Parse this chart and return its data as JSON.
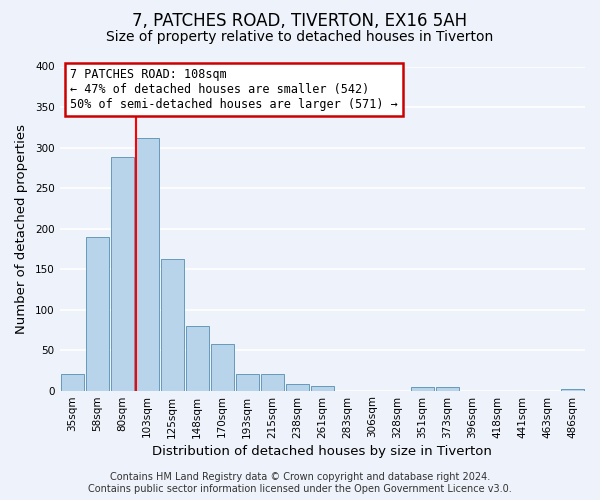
{
  "title": "7, PATCHES ROAD, TIVERTON, EX16 5AH",
  "subtitle": "Size of property relative to detached houses in Tiverton",
  "xlabel": "Distribution of detached houses by size in Tiverton",
  "ylabel": "Number of detached properties",
  "categories": [
    "35sqm",
    "58sqm",
    "80sqm",
    "103sqm",
    "125sqm",
    "148sqm",
    "170sqm",
    "193sqm",
    "215sqm",
    "238sqm",
    "261sqm",
    "283sqm",
    "306sqm",
    "328sqm",
    "351sqm",
    "373sqm",
    "396sqm",
    "418sqm",
    "441sqm",
    "463sqm",
    "486sqm"
  ],
  "values": [
    20,
    190,
    288,
    312,
    162,
    80,
    58,
    20,
    20,
    8,
    6,
    0,
    0,
    0,
    4,
    4,
    0,
    0,
    0,
    0,
    2
  ],
  "bar_color": "#b8d4ea",
  "bar_edge_color": "#6699bb",
  "red_line_index": 3,
  "ylim": [
    0,
    400
  ],
  "yticks": [
    0,
    50,
    100,
    150,
    200,
    250,
    300,
    350,
    400
  ],
  "annotation_box_text": "7 PATCHES ROAD: 108sqm\n← 47% of detached houses are smaller (542)\n50% of semi-detached houses are larger (571) →",
  "annotation_box_color": "#ffffff",
  "annotation_box_edge_color": "#cc0000",
  "footer_line1": "Contains HM Land Registry data © Crown copyright and database right 2024.",
  "footer_line2": "Contains public sector information licensed under the Open Government Licence v3.0.",
  "background_color": "#eef2fa",
  "title_fontsize": 12,
  "subtitle_fontsize": 10,
  "axis_label_fontsize": 9.5,
  "tick_fontsize": 7.5,
  "footer_fontsize": 7
}
